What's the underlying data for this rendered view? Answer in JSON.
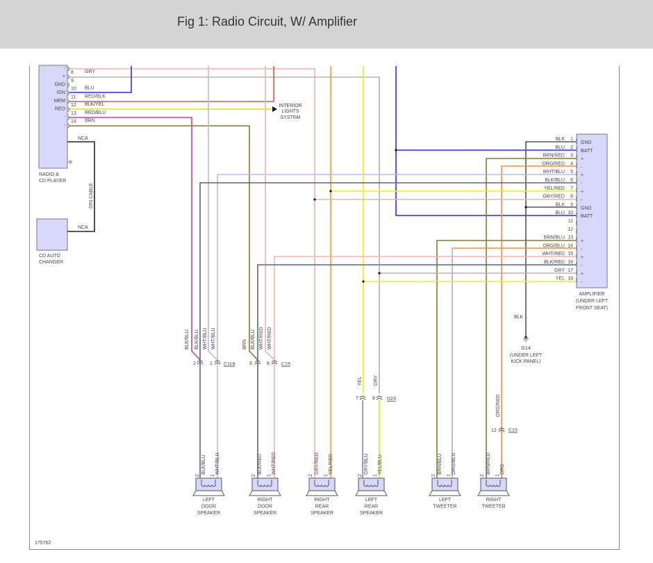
{
  "header": {
    "title": "Fig 1: Radio Circuit, W/ Amplifier"
  },
  "colors": {
    "blue": "#2a2aff",
    "red": "#e05555",
    "pink": "#f0b4b4",
    "gray": "#b4b4b4",
    "yellow": "#f2f200",
    "orange": "#ff8a3a",
    "brown": "#8c7632",
    "lavender": "#b8b8f4",
    "darkblue": "#60607e",
    "black": "#444444",
    "component": "#d8d8fa"
  },
  "radio": {
    "label": [
      "RADIO &",
      "CD PLAYER"
    ],
    "sides": [
      "-",
      "+",
      "GND",
      "IGN",
      "MEM",
      "REO",
      "-",
      "-"
    ],
    "pins": [
      {
        "num": "8",
        "wire": "GRY"
      },
      {
        "num": "9",
        "wire": ""
      },
      {
        "num": "10",
        "wire": "BLU"
      },
      {
        "num": "11",
        "wire": "RED/BLK"
      },
      {
        "num": "12",
        "wire": "BLK/YEL"
      },
      {
        "num": "13",
        "wire": "RED/BLU"
      },
      {
        "num": "14",
        "wire": "BRN"
      }
    ],
    "nca": "NCA"
  },
  "interior_lights": [
    "INTERIOR",
    "LIGHTS",
    "SYSTEM"
  ],
  "din_cable": "DIN CABLE",
  "cd_changer": {
    "label": [
      "CD AUTO",
      "CHANGER"
    ],
    "nca": "NCA"
  },
  "amplifier": {
    "label": [
      "AMPLIFIER",
      "(UNDER LEFT",
      "FRONT SEAT)"
    ],
    "pins": [
      {
        "num": "1",
        "wire": "BLK",
        "side": "GND"
      },
      {
        "num": "2",
        "wire": "BLU",
        "side": "BATT"
      },
      {
        "num": "3",
        "wire": "BRN/RED",
        "side": "+"
      },
      {
        "num": "4",
        "wire": "ORG/RED",
        "side": "-"
      },
      {
        "num": "5",
        "wire": "WHT/BLU",
        "side": "+"
      },
      {
        "num": "6",
        "wire": "BLK/BLU",
        "side": "-"
      },
      {
        "num": "7",
        "wire": "YEL/RED",
        "side": "+"
      },
      {
        "num": "8",
        "wire": "GRY/RED",
        "side": "-"
      },
      {
        "num": "9",
        "wire": "BLK",
        "side": "GND"
      },
      {
        "num": "10",
        "wire": "BLU",
        "side": "BATT"
      },
      {
        "num": "11",
        "wire": "",
        "side": ""
      },
      {
        "num": "12",
        "wire": "",
        "side": ""
      },
      {
        "num": "13",
        "wire": "BRN/BLU",
        "side": "+"
      },
      {
        "num": "14",
        "wire": "ORG/BLU",
        "side": "-"
      },
      {
        "num": "15",
        "wire": "WHT/RED",
        "side": "+"
      },
      {
        "num": "16",
        "wire": "BLK/RED",
        "side": "-"
      },
      {
        "num": "17",
        "wire": "GRY",
        "side": "+"
      },
      {
        "num": "18",
        "wire": "YEL",
        "side": "-"
      }
    ]
  },
  "ground": {
    "wire": "BLK",
    "label": [
      "G14",
      "(UNDER LEFT",
      "KICK PANEL)"
    ]
  },
  "connectors": {
    "c118": {
      "name": "C118",
      "pins": [
        "2",
        "1"
      ],
      "wires_above": [
        "BLK/BLU",
        "BLK/BLU",
        "WHT/BLU",
        "WHT/BLU"
      ]
    },
    "c15_door": {
      "name": "C15",
      "pins": [
        "9",
        "8"
      ],
      "wires_above": [
        "BRN",
        "BLK/BLU",
        "WHT/RED",
        "WHT/RED"
      ]
    },
    "d23": {
      "name": "D23",
      "pins": [
        "7",
        "8"
      ],
      "wires_above": [
        "YEL",
        "GRY"
      ]
    },
    "c15_tweeter": {
      "name": "C15",
      "pin": "12",
      "wire_above": "ORG/RED"
    }
  },
  "speakers": [
    {
      "label": [
        "LEFT",
        "DOOR",
        "SPEAKER"
      ],
      "wires": [
        "BLK/BLU",
        "WHT/BLU"
      ]
    },
    {
      "label": [
        "RIGHT",
        "DOOR",
        "SPEAKER"
      ],
      "wires": [
        "BLK/RED",
        "WHT/RED"
      ]
    },
    {
      "label": [
        "RIGHT",
        "REAR",
        "SPEAKER"
      ],
      "wires": [
        "GRY/RED",
        "YEL/RED"
      ]
    },
    {
      "label": [
        "LEFT",
        "REAR",
        "SPEAKER"
      ],
      "wires": [
        "GRY/BLU",
        "YEL/BLU"
      ]
    },
    {
      "label": [
        "LEFT",
        "TWEETER"
      ],
      "wires": [
        "BRN/BLU",
        "ORG/BLU"
      ]
    },
    {
      "label": [
        "RIGHT",
        "TWEETER"
      ],
      "wires": [
        "BRN/RED",
        "ORG"
      ]
    }
  ],
  "speaker_pins": [
    "2",
    "1"
  ],
  "figure_id": "175762"
}
